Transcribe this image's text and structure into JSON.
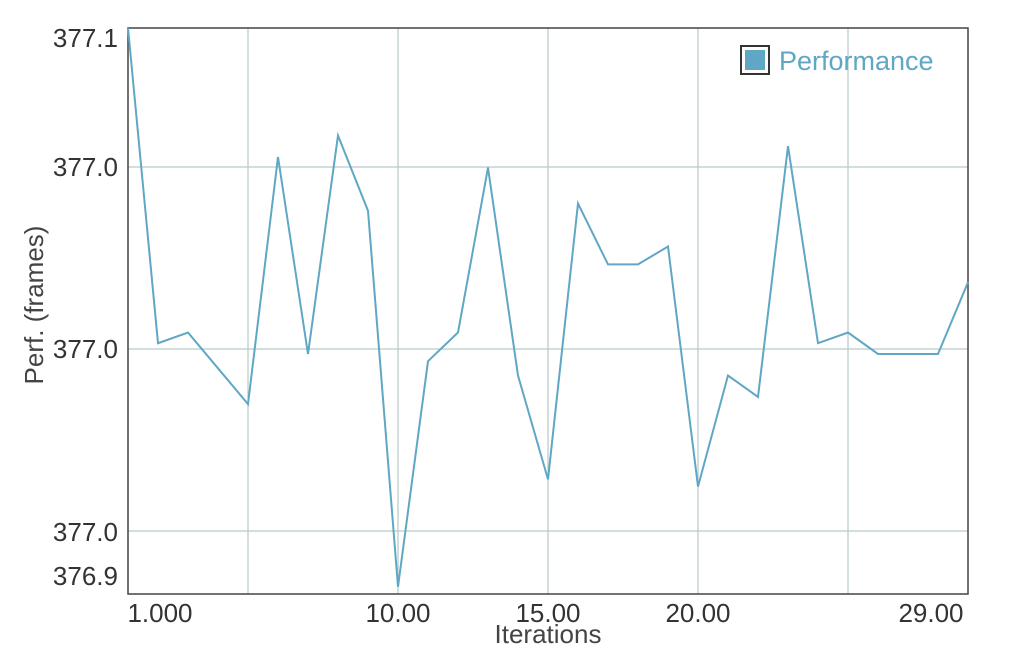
{
  "chart_data": {
    "type": "line",
    "xlabel": "Iterations",
    "ylabel": "Perf. (frames)",
    "x_tick_labels": [
      "1.000",
      "10.00",
      "15.00",
      "20.00",
      "29.00"
    ],
    "y_tick_labels": [
      "377.1",
      "377.0",
      "377.0",
      "377.0",
      "376.9"
    ],
    "grid": true,
    "legend_position": "top-right",
    "series": [
      {
        "name": "Performance",
        "color": "#5fa7c4",
        "x": [
          1,
          2,
          3,
          4,
          5,
          6,
          7,
          8,
          9,
          10,
          11,
          12,
          13,
          14,
          15,
          16,
          17,
          18,
          19,
          20,
          21,
          22,
          23,
          24,
          25,
          26,
          27,
          28,
          29
        ],
        "y": [
          377.088,
          377.0,
          377.003,
          376.993,
          376.983,
          377.052,
          376.997,
          377.058,
          377.037,
          376.932,
          376.995,
          377.003,
          377.049,
          376.991,
          376.962,
          377.039,
          377.022,
          377.022,
          377.027,
          376.96,
          376.991,
          376.985,
          377.055,
          377.0,
          377.003,
          376.997,
          376.997,
          376.997,
          377.017
        ]
      }
    ]
  },
  "legend": {
    "label": "Performance",
    "color": "#5fa7c4"
  }
}
